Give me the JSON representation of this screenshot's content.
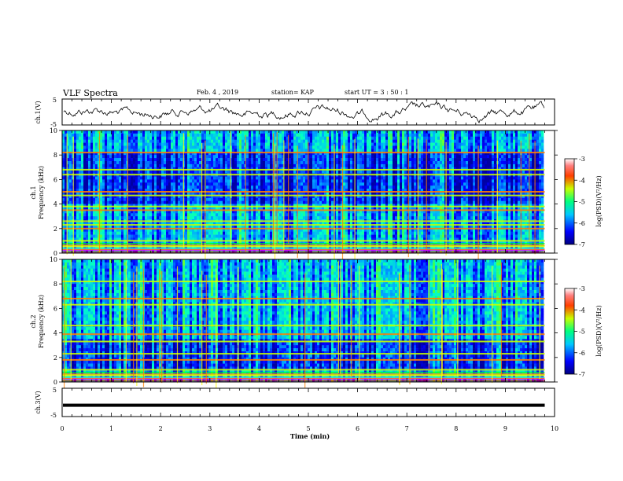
{
  "header": {
    "title": "VLF Spectra",
    "date": "Feb. 4 , 2019",
    "station": "station= KAP",
    "start": "start  UT =  3 : 50 : 1"
  },
  "chart_data": [
    {
      "type": "line",
      "panel": "ch1-waveform",
      "ylabel": "ch.1(V)",
      "ylim": [
        -5,
        5
      ],
      "yticks": [
        "5",
        "-5"
      ],
      "xlim": [
        0,
        10
      ],
      "x_extent": 9.8,
      "series_color": "#000000"
    },
    {
      "type": "heatmap",
      "panel": "ch1-spectrogram",
      "ylabel_line1": "ch.1",
      "ylabel_line2": "Frequency (kHz)",
      "ylim": [
        0,
        10
      ],
      "yticks": [
        "0",
        "2",
        "4",
        "6",
        "8",
        "10"
      ],
      "xlim": [
        0,
        10
      ],
      "x_extent": 9.8,
      "colorbar": {
        "label": "log(PSD)(V²/Hz)",
        "range": [
          -7,
          -3
        ],
        "ticks": [
          "-3",
          "-4",
          "-5",
          "-6",
          "-7"
        ]
      },
      "bands_khz": [
        0.3,
        0.6,
        1.0,
        2.0,
        2.3,
        2.6,
        3.5,
        3.8,
        4.7,
        5.0,
        6.4,
        6.8,
        8.2
      ]
    },
    {
      "type": "heatmap",
      "panel": "ch2-spectrogram",
      "ylabel_line1": "ch.2",
      "ylabel_line2": "Frequency (kHz)",
      "ylim": [
        0,
        10
      ],
      "yticks": [
        "0",
        "2",
        "4",
        "6",
        "8",
        "10"
      ],
      "xlim": [
        0,
        10
      ],
      "x_extent": 9.8,
      "colorbar": {
        "label": "log(PSD)(V²/Hz)",
        "range": [
          -7,
          -3
        ],
        "ticks": [
          "-3",
          "-4",
          "-5",
          "-6",
          "-7"
        ]
      },
      "bands_khz": [
        0.3,
        0.6,
        1.0,
        1.8,
        2.3,
        3.3,
        3.9,
        4.6,
        6.3,
        6.8,
        8.2
      ]
    },
    {
      "type": "line",
      "panel": "ch3-waveform",
      "ylabel": "ch.3(V)",
      "ylim": [
        -5,
        5
      ],
      "yticks": [
        "5",
        "-5"
      ],
      "xlim": [
        0,
        10
      ],
      "x_extent": 9.8,
      "level": -1,
      "series_color": "#000000"
    }
  ],
  "xaxis": {
    "label": "Time  (min)",
    "ticks": [
      "0",
      "1",
      "2",
      "3",
      "4",
      "5",
      "6",
      "7",
      "8",
      "9",
      "10"
    ]
  }
}
